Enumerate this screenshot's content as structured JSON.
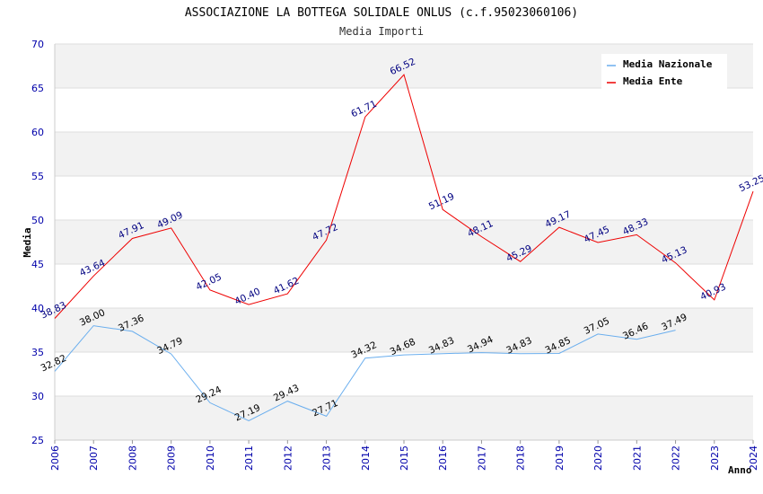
{
  "chart_data": {
    "type": "line",
    "title": "ASSOCIAZIONE LA BOTTEGA SOLIDALE ONLUS (c.f.95023060106)",
    "subtitle": "Media Importi",
    "xlabel": "Anno",
    "ylabel": "Media",
    "ylim": [
      25,
      70
    ],
    "yticks": [
      "25",
      "30",
      "35",
      "40",
      "45",
      "50",
      "55",
      "60",
      "65",
      "70"
    ],
    "categories": [
      "2006",
      "2007",
      "2008",
      "2009",
      "2010",
      "2011",
      "2012",
      "2013",
      "2014",
      "2015",
      "2016",
      "2017",
      "2018",
      "2019",
      "2020",
      "2021",
      "2022",
      "2023",
      "2024"
    ],
    "grid": true,
    "legend_position": "top-right",
    "series": [
      {
        "name": "Media Nazionale",
        "color": "#6aaeee",
        "label_color": "#000000",
        "values": [
          32.82,
          38.0,
          37.36,
          34.79,
          29.24,
          27.19,
          29.43,
          27.71,
          34.32,
          34.68,
          34.83,
          34.94,
          34.83,
          34.85,
          37.05,
          36.46,
          37.49,
          null,
          null
        ],
        "labels": [
          "32.82",
          "38.00",
          "37.36",
          "34.79",
          "29.24",
          "27.19",
          "29.43",
          "27.71",
          "34.32",
          "34.68",
          "34.83",
          "34.94",
          "34.83",
          "34.85",
          "37.05",
          "36.46",
          "37.49",
          null,
          null
        ]
      },
      {
        "name": "Media Ente",
        "color": "#ee0000",
        "label_color": "#000080",
        "values": [
          38.83,
          43.64,
          47.91,
          49.09,
          42.05,
          40.4,
          41.62,
          47.72,
          61.71,
          66.52,
          51.19,
          48.11,
          45.29,
          49.17,
          47.45,
          48.33,
          45.13,
          40.93,
          53.25
        ],
        "labels": [
          "38.83",
          "43.64",
          "47.91",
          "49.09",
          "42.05",
          "40.40",
          "41.62",
          "47.72",
          "61.71",
          "66.52",
          "51.19",
          "48.11",
          "45.29",
          "49.17",
          "47.45",
          "48.33",
          "45.13",
          "40.93",
          "53.25"
        ]
      }
    ],
    "colors": {
      "tick_text": "#0000aa",
      "band": "#f2f2f2",
      "gridline": "#dddddd"
    }
  }
}
